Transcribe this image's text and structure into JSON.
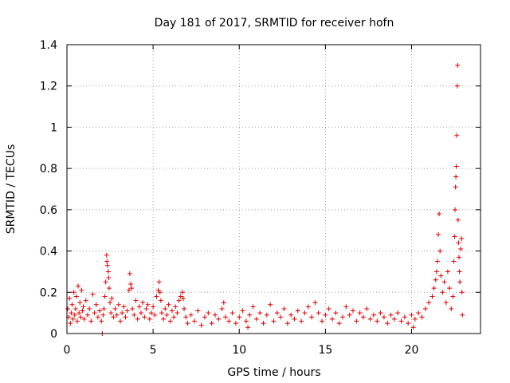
{
  "chart_data": {
    "type": "scatter",
    "title": "Day 181 of 2017, SRMTID for receiver hofn",
    "xlabel": "GPS time / hours",
    "ylabel": "SRMTID / TECUs",
    "xlim": [
      0,
      24
    ],
    "ylim": [
      0,
      1.4
    ],
    "x_ticks": [
      0,
      5,
      10,
      15,
      20
    ],
    "y_ticks": [
      0,
      0.2,
      0.4,
      0.6,
      0.8,
      1,
      1.2,
      1.4
    ],
    "x_tick_labels": [
      "0",
      "5",
      "10",
      "15",
      "20"
    ],
    "y_tick_labels": [
      "0",
      "0.2",
      "0.4",
      "0.6",
      "0.8",
      "1",
      "1.2",
      "1.4"
    ],
    "grid": true,
    "marker": "plus",
    "color": "#e00000",
    "series": [
      {
        "name": "SRMTID",
        "points": [
          [
            0.05,
            0.12
          ],
          [
            0.1,
            0.08
          ],
          [
            0.15,
            0.17
          ],
          [
            0.2,
            0.05
          ],
          [
            0.25,
            0.1
          ],
          [
            0.3,
            0.14
          ],
          [
            0.35,
            0.07
          ],
          [
            0.4,
            0.2
          ],
          [
            0.45,
            0.09
          ],
          [
            0.5,
            0.12
          ],
          [
            0.55,
            0.18
          ],
          [
            0.6,
            0.06
          ],
          [
            0.65,
            0.23
          ],
          [
            0.7,
            0.1
          ],
          [
            0.75,
            0.15
          ],
          [
            0.8,
            0.08
          ],
          [
            0.85,
            0.21
          ],
          [
            0.9,
            0.11
          ],
          [
            0.95,
            0.13
          ],
          [
            1.0,
            0.07
          ],
          [
            1.1,
            0.16
          ],
          [
            1.2,
            0.09
          ],
          [
            1.3,
            0.12
          ],
          [
            1.4,
            0.06
          ],
          [
            1.5,
            0.19
          ],
          [
            1.6,
            0.1
          ],
          [
            1.7,
            0.14
          ],
          [
            1.8,
            0.08
          ],
          [
            1.9,
            0.11
          ],
          [
            2.0,
            0.06
          ],
          [
            2.05,
            0.0
          ],
          [
            2.1,
            0.09
          ],
          [
            2.15,
            0.12
          ],
          [
            2.2,
            0.18
          ],
          [
            2.25,
            0.25
          ],
          [
            2.3,
            0.38
          ],
          [
            2.32,
            0.35
          ],
          [
            2.35,
            0.33
          ],
          [
            2.4,
            0.3
          ],
          [
            2.42,
            0.27
          ],
          [
            2.45,
            0.22
          ],
          [
            2.5,
            0.15
          ],
          [
            2.55,
            0.1
          ],
          [
            2.6,
            0.17
          ],
          [
            2.7,
            0.08
          ],
          [
            2.8,
            0.12
          ],
          [
            2.9,
            0.09
          ],
          [
            3.0,
            0.14
          ],
          [
            3.1,
            0.06
          ],
          [
            3.2,
            0.1
          ],
          [
            3.3,
            0.13
          ],
          [
            3.4,
            0.08
          ],
          [
            3.5,
            0.11
          ],
          [
            3.6,
            0.21
          ],
          [
            3.65,
            0.29
          ],
          [
            3.7,
            0.24
          ],
          [
            3.75,
            0.22
          ],
          [
            3.8,
            0.12
          ],
          [
            3.9,
            0.09
          ],
          [
            4.0,
            0.16
          ],
          [
            4.1,
            0.07
          ],
          [
            4.2,
            0.13
          ],
          [
            4.3,
            0.1
          ],
          [
            4.4,
            0.15
          ],
          [
            4.5,
            0.08
          ],
          [
            4.6,
            0.12
          ],
          [
            4.7,
            0.14
          ],
          [
            4.8,
            0.07
          ],
          [
            4.9,
            0.1
          ],
          [
            5.0,
            0.13
          ],
          [
            5.1,
            0.09
          ],
          [
            5.2,
            0.18
          ],
          [
            5.3,
            0.21
          ],
          [
            5.35,
            0.25
          ],
          [
            5.4,
            0.2
          ],
          [
            5.45,
            0.16
          ],
          [
            5.5,
            0.1
          ],
          [
            5.6,
            0.07
          ],
          [
            5.7,
            0.12
          ],
          [
            5.8,
            0.09
          ],
          [
            5.9,
            0.14
          ],
          [
            6.0,
            0.06
          ],
          [
            6.1,
            0.11
          ],
          [
            6.2,
            0.08
          ],
          [
            6.3,
            0.13
          ],
          [
            6.4,
            0.1
          ],
          [
            6.5,
            0.16
          ],
          [
            6.6,
            0.18
          ],
          [
            6.7,
            0.2
          ],
          [
            6.75,
            0.17
          ],
          [
            6.8,
            0.12
          ],
          [
            6.9,
            0.08
          ],
          [
            7.0,
            0.05
          ],
          [
            7.2,
            0.09
          ],
          [
            7.4,
            0.06
          ],
          [
            7.6,
            0.11
          ],
          [
            7.8,
            0.04
          ],
          [
            8.0,
            0.08
          ],
          [
            8.2,
            0.1
          ],
          [
            8.4,
            0.05
          ],
          [
            8.6,
            0.09
          ],
          [
            8.8,
            0.07
          ],
          [
            9.0,
            0.12
          ],
          [
            9.1,
            0.15
          ],
          [
            9.2,
            0.08
          ],
          [
            9.4,
            0.06
          ],
          [
            9.6,
            0.1
          ],
          [
            9.8,
            0.05
          ],
          [
            10.0,
            0.08
          ],
          [
            10.2,
            0.11
          ],
          [
            10.4,
            0.06
          ],
          [
            10.5,
            0.03
          ],
          [
            10.6,
            0.09
          ],
          [
            10.8,
            0.13
          ],
          [
            11.0,
            0.07
          ],
          [
            11.2,
            0.1
          ],
          [
            11.4,
            0.05
          ],
          [
            11.6,
            0.09
          ],
          [
            11.8,
            0.14
          ],
          [
            12.0,
            0.06
          ],
          [
            12.2,
            0.1
          ],
          [
            12.4,
            0.08
          ],
          [
            12.6,
            0.12
          ],
          [
            12.8,
            0.05
          ],
          [
            13.0,
            0.09
          ],
          [
            13.2,
            0.07
          ],
          [
            13.4,
            0.11
          ],
          [
            13.6,
            0.06
          ],
          [
            13.8,
            0.1
          ],
          [
            14.0,
            0.13
          ],
          [
            14.2,
            0.08
          ],
          [
            14.4,
            0.15
          ],
          [
            14.6,
            0.1
          ],
          [
            14.8,
            0.06
          ],
          [
            15.0,
            0.09
          ],
          [
            15.2,
            0.12
          ],
          [
            15.4,
            0.07
          ],
          [
            15.6,
            0.1
          ],
          [
            15.8,
            0.05
          ],
          [
            16.0,
            0.08
          ],
          [
            16.2,
            0.13
          ],
          [
            16.4,
            0.09
          ],
          [
            16.6,
            0.11
          ],
          [
            16.8,
            0.06
          ],
          [
            17.0,
            0.1
          ],
          [
            17.2,
            0.08
          ],
          [
            17.4,
            0.12
          ],
          [
            17.6,
            0.07
          ],
          [
            17.8,
            0.09
          ],
          [
            18.0,
            0.06
          ],
          [
            18.2,
            0.1
          ],
          [
            18.4,
            0.08
          ],
          [
            18.6,
            0.05
          ],
          [
            18.8,
            0.09
          ],
          [
            19.0,
            0.07
          ],
          [
            19.2,
            0.1
          ],
          [
            19.4,
            0.06
          ],
          [
            19.6,
            0.08
          ],
          [
            19.8,
            0.05
          ],
          [
            20.0,
            0.09
          ],
          [
            20.1,
            0.03
          ],
          [
            20.2,
            0.07
          ],
          [
            20.4,
            0.1
          ],
          [
            20.6,
            0.08
          ],
          [
            20.8,
            0.12
          ],
          [
            21.0,
            0.15
          ],
          [
            21.2,
            0.18
          ],
          [
            21.3,
            0.22
          ],
          [
            21.4,
            0.26
          ],
          [
            21.45,
            0.3
          ],
          [
            21.5,
            0.35
          ],
          [
            21.55,
            0.48
          ],
          [
            21.6,
            0.58
          ],
          [
            21.65,
            0.4
          ],
          [
            21.7,
            0.28
          ],
          [
            21.8,
            0.2
          ],
          [
            21.9,
            0.25
          ],
          [
            22.0,
            0.15
          ],
          [
            22.1,
            0.3
          ],
          [
            22.2,
            0.22
          ],
          [
            22.3,
            0.12
          ],
          [
            22.4,
            0.18
          ],
          [
            22.45,
            0.35
          ],
          [
            22.5,
            0.47
          ],
          [
            22.52,
            0.6
          ],
          [
            22.55,
            0.71
          ],
          [
            22.57,
            0.76
          ],
          [
            22.6,
            0.81
          ],
          [
            22.62,
            0.96
          ],
          [
            22.65,
            1.2
          ],
          [
            22.67,
            1.3
          ],
          [
            22.7,
            0.55
          ],
          [
            22.72,
            0.44
          ],
          [
            22.75,
            0.37
          ],
          [
            22.78,
            0.3
          ],
          [
            22.8,
            0.25
          ],
          [
            22.85,
            0.41
          ],
          [
            22.9,
            0.46
          ],
          [
            22.92,
            0.2
          ],
          [
            22.95,
            0.09
          ]
        ]
      }
    ]
  }
}
